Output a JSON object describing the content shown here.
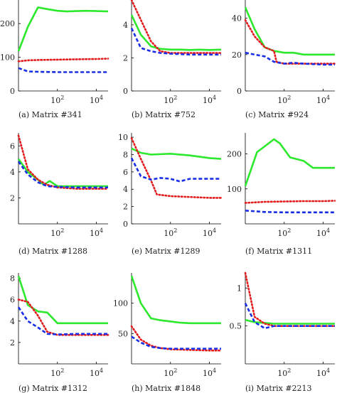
{
  "chart_data": [
    {
      "type": "line",
      "caption": "(a) Matrix #341",
      "xscale": "log",
      "xlim": [
        1,
        40000
      ],
      "xticks": [
        100,
        10000
      ],
      "ylim": [
        0,
        270
      ],
      "yticks": [
        0,
        100,
        200
      ],
      "series": [
        {
          "color": "#2ee82e",
          "dash": "solid",
          "x": [
            1,
            3,
            10,
            30,
            100,
            300,
            1000,
            3000,
            10000,
            40000
          ],
          "y": [
            118,
            190,
            248,
            243,
            238,
            236,
            237,
            238,
            237,
            236
          ]
        },
        {
          "color": "#e41a1c",
          "dash": "dot",
          "x": [
            1,
            3,
            10,
            100,
            1000,
            10000,
            40000
          ],
          "y": [
            88,
            91,
            92,
            93,
            94,
            95,
            96
          ]
        },
        {
          "color": "#1a2ee8",
          "dash": "dash",
          "x": [
            1,
            3,
            10,
            100,
            1000,
            10000,
            40000
          ],
          "y": [
            68,
            58,
            57,
            56,
            56,
            56,
            56
          ]
        }
      ]
    },
    {
      "type": "line",
      "caption": "(b) Matrix #752",
      "xscale": "log",
      "xlim": [
        1,
        40000
      ],
      "xticks": [
        100,
        10000
      ],
      "ylim": [
        0,
        5.5
      ],
      "yticks": [
        0,
        2,
        4
      ],
      "series": [
        {
          "color": "#2ee82e",
          "dash": "solid",
          "x": [
            1,
            3,
            10,
            30,
            100,
            300,
            1000,
            3000,
            10000,
            40000
          ],
          "y": [
            4.6,
            3.4,
            2.7,
            2.55,
            2.5,
            2.5,
            2.48,
            2.5,
            2.48,
            2.5
          ]
        },
        {
          "color": "#e41a1c",
          "dash": "dot",
          "x": [
            1,
            3,
            10,
            30,
            100,
            1000,
            10000,
            40000
          ],
          "y": [
            5.5,
            4.3,
            3.0,
            2.4,
            2.3,
            2.3,
            2.3,
            2.3
          ]
        },
        {
          "color": "#1a2ee8",
          "dash": "dash",
          "x": [
            1,
            3,
            10,
            30,
            100,
            1000,
            10000,
            40000
          ],
          "y": [
            3.8,
            2.6,
            2.4,
            2.3,
            2.25,
            2.2,
            2.2,
            2.2
          ]
        }
      ]
    },
    {
      "type": "line",
      "caption": "(c) Matrix #924",
      "xscale": "log",
      "xlim": [
        1,
        40000
      ],
      "xticks": [
        100,
        10000
      ],
      "ylim": [
        0,
        50
      ],
      "yticks": [
        0,
        20,
        40
      ],
      "series": [
        {
          "color": "#2ee82e",
          "dash": "solid",
          "x": [
            1,
            3,
            10,
            30,
            100,
            300,
            1000,
            3000,
            10000,
            40000
          ],
          "y": [
            46,
            34,
            24,
            22,
            21,
            21,
            20,
            20,
            20,
            20
          ]
        },
        {
          "color": "#e41a1c",
          "dash": "dot",
          "x": [
            1,
            3,
            10,
            30,
            40,
            100,
            1000,
            10000,
            40000
          ],
          "y": [
            39,
            30,
            24,
            22,
            16,
            15,
            15,
            15,
            15
          ]
        },
        {
          "color": "#1a2ee8",
          "dash": "dash",
          "x": [
            1,
            3,
            10,
            30,
            100,
            300,
            1000,
            10000,
            40000
          ],
          "y": [
            21,
            20,
            19,
            16,
            15,
            15.5,
            15,
            14.5,
            14.5
          ]
        }
      ]
    },
    {
      "type": "line",
      "caption": "(d) Matrix #1288",
      "xscale": "log",
      "xlim": [
        1,
        40000
      ],
      "xticks": [
        100,
        10000
      ],
      "ylim": [
        0,
        7
      ],
      "yticks": [
        2,
        4,
        6
      ],
      "series": [
        {
          "color": "#2ee82e",
          "dash": "solid",
          "x": [
            1,
            3,
            10,
            20,
            40,
            100,
            300,
            1000,
            10000,
            40000
          ],
          "y": [
            5.0,
            4.0,
            3.4,
            3.0,
            3.3,
            2.9,
            2.9,
            2.9,
            2.9,
            2.9
          ]
        },
        {
          "color": "#e41a1c",
          "dash": "dot",
          "x": [
            1,
            3,
            10,
            30,
            100,
            1000,
            10000,
            40000
          ],
          "y": [
            6.8,
            4.2,
            3.4,
            3.0,
            2.8,
            2.7,
            2.7,
            2.7
          ]
        },
        {
          "color": "#1a2ee8",
          "dash": "dash",
          "x": [
            1,
            3,
            10,
            30,
            100,
            1000,
            10000,
            40000
          ],
          "y": [
            4.8,
            3.8,
            3.2,
            2.9,
            2.85,
            2.8,
            2.8,
            2.8
          ]
        }
      ]
    },
    {
      "type": "line",
      "caption": "(e) Matrix #1289",
      "xscale": "log",
      "xlim": [
        1,
        40000
      ],
      "xticks": [
        100,
        10000
      ],
      "ylim": [
        0,
        10.5
      ],
      "yticks": [
        0,
        2,
        4,
        6,
        8,
        10
      ],
      "series": [
        {
          "color": "#2ee82e",
          "dash": "solid",
          "x": [
            1,
            3,
            10,
            100,
            1000,
            10000,
            40000
          ],
          "y": [
            8.7,
            8.2,
            8.0,
            8.1,
            7.9,
            7.6,
            7.5
          ]
        },
        {
          "color": "#e41a1c",
          "dash": "dot",
          "x": [
            1,
            3,
            10,
            20,
            100,
            1000,
            10000,
            40000
          ],
          "y": [
            9.9,
            7.5,
            5.0,
            3.4,
            3.2,
            3.1,
            3.0,
            3.0
          ]
        },
        {
          "color": "#1a2ee8",
          "dash": "dash",
          "x": [
            1,
            3,
            10,
            30,
            100,
            300,
            1000,
            10000,
            40000
          ],
          "y": [
            7.6,
            5.5,
            5.1,
            5.3,
            5.2,
            4.9,
            5.2,
            5.2,
            5.2
          ]
        }
      ]
    },
    {
      "type": "line",
      "caption": "(f) Matrix #1311",
      "xscale": "log",
      "xlim": [
        1,
        40000
      ],
      "xticks": [
        100,
        10000
      ],
      "ylim": [
        0,
        260
      ],
      "yticks": [
        100,
        200
      ],
      "series": [
        {
          "color": "#2ee82e",
          "dash": "solid",
          "x": [
            1,
            4,
            30,
            60,
            200,
            1000,
            3000,
            10000,
            40000
          ],
          "y": [
            108,
            205,
            242,
            230,
            190,
            180,
            160,
            160,
            160
          ]
        },
        {
          "color": "#e41a1c",
          "dash": "dot",
          "x": [
            1,
            10,
            100,
            1000,
            10000,
            40000
          ],
          "y": [
            60,
            63,
            64,
            65,
            65,
            66
          ]
        },
        {
          "color": "#1a2ee8",
          "dash": "dash",
          "x": [
            1,
            10,
            100,
            1000,
            10000,
            40000
          ],
          "y": [
            38,
            34,
            33,
            33,
            33,
            33
          ]
        }
      ]
    },
    {
      "type": "line",
      "caption": "(g) Matrix #1312",
      "xscale": "log",
      "xlim": [
        1,
        40000
      ],
      "xticks": [
        100,
        10000
      ],
      "ylim": [
        0,
        8.5
      ],
      "yticks": [
        2,
        4,
        6,
        8
      ],
      "series": [
        {
          "color": "#2ee82e",
          "dash": "solid",
          "x": [
            1,
            3,
            10,
            30,
            100,
            1000,
            10000,
            40000
          ],
          "y": [
            8.2,
            5.5,
            4.9,
            4.8,
            3.8,
            3.8,
            3.8,
            3.8
          ]
        },
        {
          "color": "#e41a1c",
          "dash": "dot",
          "x": [
            1,
            3,
            10,
            30,
            100,
            1000,
            10000,
            40000
          ],
          "y": [
            6.0,
            5.8,
            4.5,
            3.0,
            2.7,
            2.7,
            2.7,
            2.7
          ]
        },
        {
          "color": "#1a2ee8",
          "dash": "dash",
          "x": [
            1,
            3,
            10,
            30,
            100,
            1000,
            10000,
            40000
          ],
          "y": [
            5.3,
            4.0,
            3.4,
            2.8,
            2.75,
            2.8,
            2.8,
            2.8
          ]
        }
      ]
    },
    {
      "type": "line",
      "caption": "(h) Matrix #1848",
      "xscale": "log",
      "xlim": [
        1,
        40000
      ],
      "xticks": [
        100,
        10000
      ],
      "ylim": [
        0,
        150
      ],
      "yticks": [
        50,
        100
      ],
      "series": [
        {
          "color": "#2ee82e",
          "dash": "solid",
          "x": [
            1,
            3,
            10,
            30,
            100,
            300,
            1000,
            10000,
            40000
          ],
          "y": [
            145,
            100,
            75,
            72,
            70,
            68,
            67,
            67,
            67
          ]
        },
        {
          "color": "#e41a1c",
          "dash": "dot",
          "x": [
            1,
            3,
            10,
            30,
            100,
            1000,
            10000,
            40000
          ],
          "y": [
            62,
            40,
            30,
            26,
            24,
            23,
            22,
            22
          ]
        },
        {
          "color": "#1a2ee8",
          "dash": "dash",
          "x": [
            1,
            3,
            10,
            30,
            100,
            1000,
            10000,
            40000
          ],
          "y": [
            45,
            35,
            28,
            26,
            25,
            25,
            25,
            25
          ]
        }
      ]
    },
    {
      "type": "line",
      "caption": "(i) Matrix #2213",
      "xscale": "log",
      "xlim": [
        1,
        40000
      ],
      "xticks": [
        100,
        10000
      ],
      "ylim": [
        0,
        1.2
      ],
      "yticks": [
        0.5,
        1
      ],
      "series": [
        {
          "color": "#2ee82e",
          "dash": "solid",
          "x": [
            1,
            3,
            10,
            30,
            100,
            1000,
            10000,
            40000
          ],
          "y": [
            0.58,
            0.55,
            0.54,
            0.53,
            0.53,
            0.53,
            0.53,
            0.53
          ]
        },
        {
          "color": "#e41a1c",
          "dash": "dot",
          "x": [
            1,
            3,
            10,
            30,
            100,
            1000,
            10000,
            40000
          ],
          "y": [
            1.2,
            0.62,
            0.53,
            0.5,
            0.5,
            0.5,
            0.5,
            0.5
          ]
        },
        {
          "color": "#1a2ee8",
          "dash": "dash",
          "x": [
            1,
            3,
            10,
            30,
            100,
            1000,
            10000,
            40000
          ],
          "y": [
            0.8,
            0.55,
            0.47,
            0.5,
            0.5,
            0.5,
            0.5,
            0.5
          ]
        }
      ]
    }
  ]
}
